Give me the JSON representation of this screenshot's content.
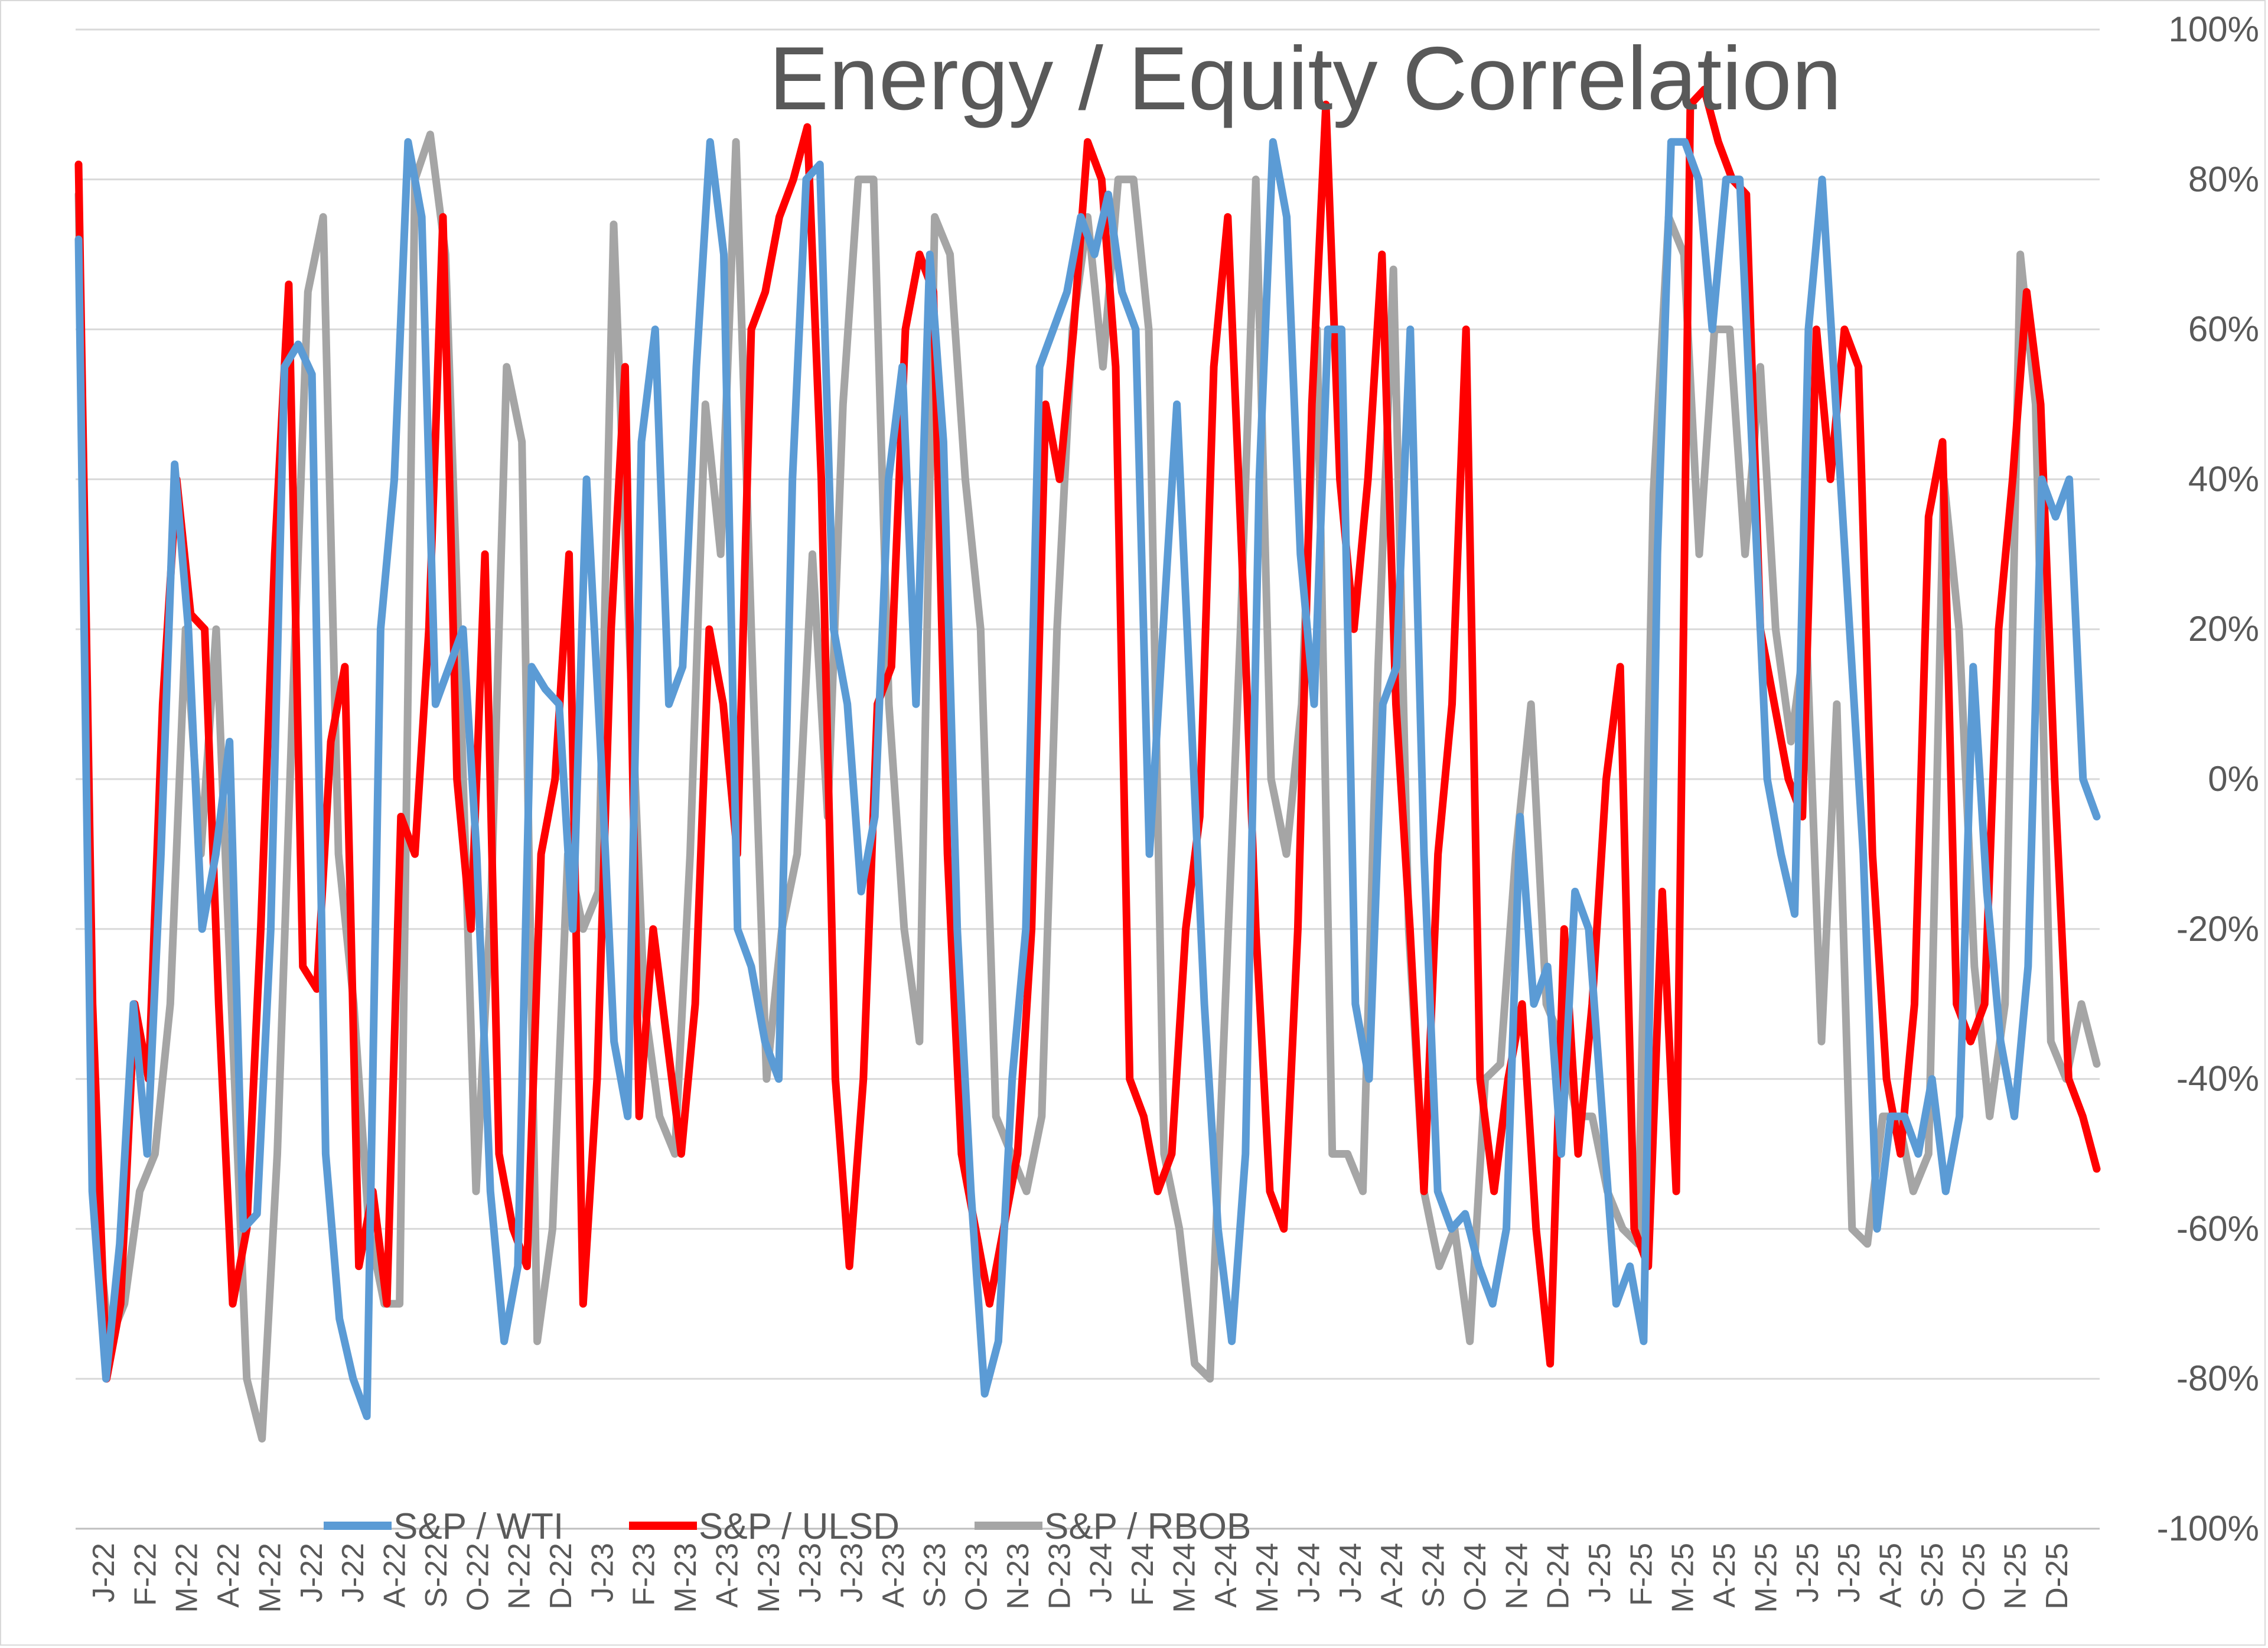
{
  "chart_data": {
    "type": "line",
    "title": "Energy / Equity Correlation",
    "xlabel": "",
    "ylabel": "",
    "ylim": [
      -100,
      100
    ],
    "y_axis_position": "right",
    "y_tick_labels": [
      "100%",
      "80%",
      "60%",
      "40%",
      "20%",
      "0%",
      "-20%",
      "-40%",
      "-60%",
      "-80%",
      "-100%"
    ],
    "x_tick_labels": [
      "J-22",
      "F-22",
      "M-22",
      "A-22",
      "M-22",
      "J-22",
      "J-22",
      "A-22",
      "S-22",
      "O-22",
      "N-22",
      "D-22",
      "J-23",
      "F-23",
      "M-23",
      "A-23",
      "M-23",
      "J-23",
      "J-23",
      "A-23",
      "S-23",
      "O-23",
      "N-23",
      "D-23",
      "J-24",
      "F-24",
      "M-24",
      "A-24",
      "M-24",
      "J-24",
      "J-24",
      "A-24",
      "S-24",
      "O-24",
      "N-24",
      "D-24",
      "J-25",
      "F-25",
      "M-25",
      "A-25",
      "M-25",
      "J-25",
      "J-25",
      "A-25",
      "S-25",
      "O-25",
      "N-25",
      "D-25"
    ],
    "grid": true,
    "legend_position": "bottom",
    "series": [
      {
        "name": "S&P / WTI",
        "color": "#5b9bd5",
        "values": [
          72,
          -55,
          -80,
          -62,
          -30,
          -50,
          -10,
          42,
          20,
          -20,
          -10,
          5,
          -60,
          -58,
          -20,
          55,
          58,
          54,
          -50,
          -72,
          -80,
          -85,
          20,
          40,
          85,
          75,
          10,
          15,
          20,
          -10,
          -55,
          -75,
          -65,
          15,
          12,
          10,
          -20,
          40,
          5,
          -35,
          -45,
          45,
          60,
          10,
          15,
          55,
          85,
          70,
          -20,
          -25,
          -35,
          -40,
          40,
          80,
          82,
          20,
          10,
          -15,
          -5,
          40,
          55,
          10,
          70,
          45,
          -20,
          -55,
          -82,
          -75,
          -40,
          -20,
          55,
          60,
          65,
          75,
          70,
          78,
          65,
          60,
          -10,
          20,
          50,
          10,
          -30,
          -60,
          -75,
          -50,
          40,
          85,
          75,
          30,
          10,
          60,
          60,
          -30,
          -40,
          10,
          15,
          60,
          -10,
          -55,
          -60,
          -58,
          -65,
          -70,
          -60,
          -5,
          -30,
          -25,
          -50,
          -15,
          -20,
          -45,
          -70,
          -65,
          -75,
          30,
          85,
          85,
          80,
          60,
          80,
          80,
          40,
          0,
          -10,
          -18,
          60,
          80,
          50,
          20,
          -10,
          -60,
          -45,
          -45,
          -50,
          -40,
          -55,
          -45,
          15,
          -15,
          -35,
          -45,
          -25,
          40,
          35,
          40,
          0,
          -5
        ]
      },
      {
        "name": "S&P / ULSD",
        "color": "#ff0000",
        "values": [
          82,
          -30,
          -80,
          -70,
          -30,
          -40,
          10,
          40,
          22,
          20,
          -30,
          -70,
          -60,
          -20,
          30,
          66,
          -25,
          -28,
          5,
          15,
          -65,
          -55,
          -70,
          -5,
          -10,
          20,
          75,
          0,
          -20,
          30,
          -50,
          -60,
          -65,
          -10,
          0,
          30,
          -70,
          -40,
          20,
          55,
          -45,
          -20,
          -35,
          -50,
          -30,
          20,
          10,
          -10,
          60,
          65,
          75,
          80,
          87,
          40,
          -40,
          -65,
          -40,
          10,
          15,
          60,
          70,
          65,
          -10,
          -50,
          -60,
          -70,
          -60,
          -50,
          -20,
          50,
          40,
          60,
          85,
          80,
          55,
          -40,
          -45,
          -55,
          -50,
          -20,
          -5,
          55,
          75,
          30,
          -20,
          -55,
          -60,
          -20,
          50,
          90,
          40,
          20,
          40,
          70,
          10,
          -20,
          -55,
          -10,
          10,
          60,
          -40,
          -55,
          -40,
          -30,
          -60,
          -78,
          -20,
          -50,
          -30,
          0,
          15,
          -60,
          -65,
          -15,
          -55,
          90,
          92,
          85,
          80,
          78,
          20,
          10,
          0,
          -5,
          60,
          40,
          60,
          55,
          -10,
          -40,
          -50,
          -30,
          35,
          45,
          -30,
          -35,
          -30,
          20,
          40,
          65,
          50,
          0,
          -40,
          -45,
          -52
        ]
      },
      {
        "name": "S&P / RBOB",
        "color": "#a5a5a5",
        "values": [
          78,
          -55,
          -75,
          -70,
          -55,
          -50,
          -30,
          20,
          -10,
          20,
          -30,
          -80,
          -88,
          -50,
          10,
          65,
          75,
          -10,
          -30,
          -60,
          -70,
          -70,
          80,
          86,
          70,
          10,
          -55,
          -15,
          55,
          45,
          -75,
          -60,
          -10,
          -20,
          -15,
          74,
          20,
          -30,
          -45,
          -50,
          -10,
          50,
          30,
          85,
          20,
          -40,
          -20,
          -10,
          30,
          -5,
          50,
          80,
          80,
          10,
          -20,
          -35,
          75,
          70,
          40,
          20,
          -45,
          -50,
          -55,
          -45,
          20,
          60,
          75,
          55,
          80,
          80,
          60,
          -50,
          -60,
          -78,
          -80,
          -30,
          20,
          80,
          0,
          -10,
          10,
          60,
          -50,
          -50,
          -55,
          15,
          68,
          -20,
          -55,
          -65,
          -60,
          -75,
          -40,
          -38,
          -10,
          10,
          -30,
          -35,
          -45,
          -45,
          -55,
          -60,
          -62,
          38,
          75,
          70,
          30,
          60,
          60,
          30,
          55,
          20,
          5,
          20,
          -35,
          10,
          -60,
          -62,
          -45,
          -45,
          -55,
          -50,
          40,
          20,
          -25,
          -45,
          -30,
          70,
          50,
          -35,
          -40,
          -30,
          -38
        ]
      }
    ]
  }
}
